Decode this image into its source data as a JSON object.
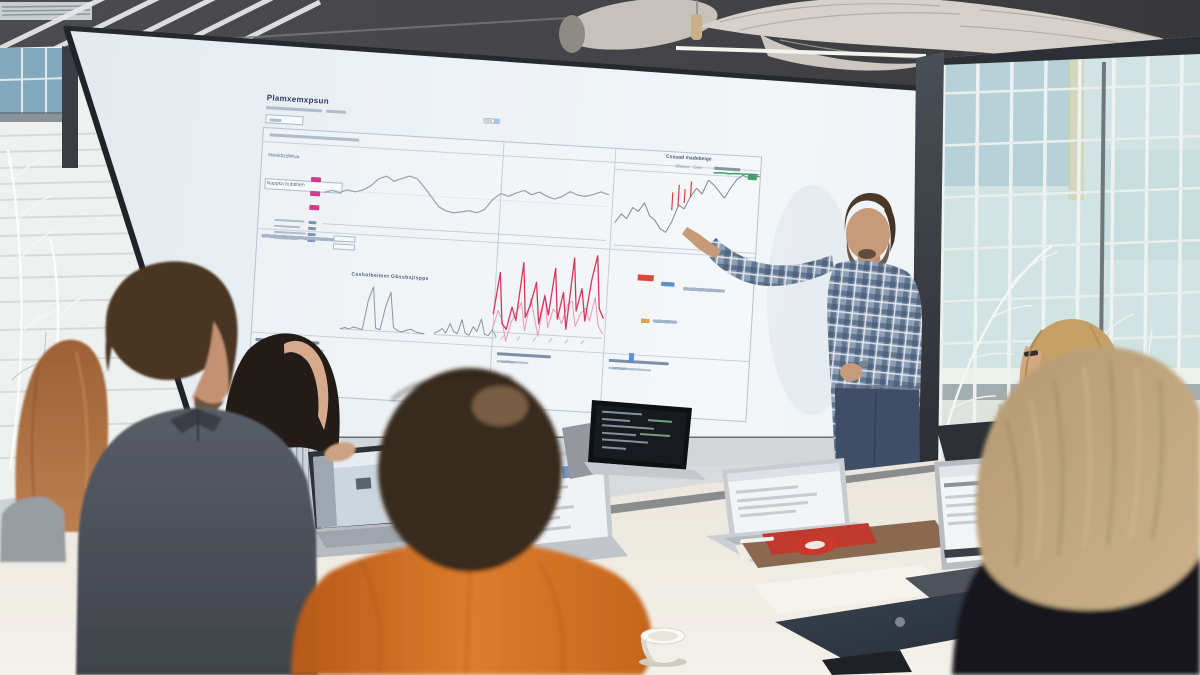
{
  "scene": {
    "setting": "conference-room team meeting, presenter pointing at projected analytics dashboard",
    "people_count": 7
  },
  "screen": {
    "title": "Plamxemxpsun",
    "panel_header": "Cssuad madebeige",
    "panel_tabs": "Xfsmvr · Gxs",
    "left_label_1": "Nwxkbzdnkuu",
    "left_label_2": "Nappka bubttheh",
    "section_header": "Cssholbeimnt Gbssbsjtspps",
    "colors": {
      "pink": "#cf3d8c",
      "red": "#d6365a",
      "orange": "#e6a23c",
      "blue": "#5b8fd4",
      "teal": "#3f9e8f",
      "green": "#3fa06a",
      "chip-red": "#d9483b",
      "chip-lightblue": "#a8c4e6"
    },
    "stack_cells": [
      "orange",
      "white",
      "blue",
      "orange",
      "gray",
      "blue",
      "white",
      "orange",
      "blue",
      "gray",
      "orange",
      "blue"
    ],
    "mini_cells": [
      "orange",
      "blue",
      "gray",
      "orange",
      "blue",
      "orange"
    ],
    "charts": {
      "trend": {
        "type": "line",
        "values": [
          44,
          47,
          45,
          49,
          47,
          50,
          56,
          66,
          70,
          64,
          68,
          72,
          69,
          58,
          46,
          34,
          29,
          27,
          29,
          31,
          29,
          34,
          48,
          56,
          53,
          58,
          62,
          57,
          61,
          56,
          53,
          57,
          64,
          60,
          59,
          62,
          66,
          63
        ]
      },
      "candle": {
        "type": "line",
        "values": [
          28,
          38,
          33,
          46,
          42,
          52,
          38,
          33,
          24,
          20,
          33,
          52,
          48,
          62,
          72,
          66,
          82,
          77,
          70,
          63,
          75,
          85,
          90,
          88,
          89,
          90
        ]
      },
      "candle_green": {
        "type": "line",
        "values": [
          86,
          90,
          87,
          91,
          90,
          92,
          91
        ]
      },
      "spiky_red_primary": {
        "type": "line",
        "values": [
          28,
          72,
          18,
          12,
          36,
          22,
          84,
          26,
          40,
          64,
          20,
          50,
          30,
          80,
          26,
          55,
          16,
          92,
          36,
          60,
          26,
          70,
          96,
          40,
          30
        ]
      },
      "spiky_red_secondary": {
        "type": "line",
        "values": [
          20,
          40,
          30,
          8,
          28,
          40,
          50,
          20,
          55,
          35,
          15,
          60,
          25,
          45,
          40,
          30,
          50,
          55,
          28,
          42,
          48,
          35,
          60,
          30,
          22
        ]
      },
      "spiky_gray_a": {
        "type": "line",
        "values": [
          4,
          7,
          5,
          9,
          7,
          5,
          62,
          88,
          9,
          7,
          52,
          80,
          13,
          7,
          5,
          9,
          11,
          7,
          5,
          4
        ]
      },
      "spiky_gray_b": {
        "type": "line",
        "values": [
          7,
          11,
          18,
          9,
          30,
          13,
          9,
          40,
          11,
          7,
          26,
          16,
          44,
          11,
          9,
          22,
          7
        ]
      }
    }
  }
}
